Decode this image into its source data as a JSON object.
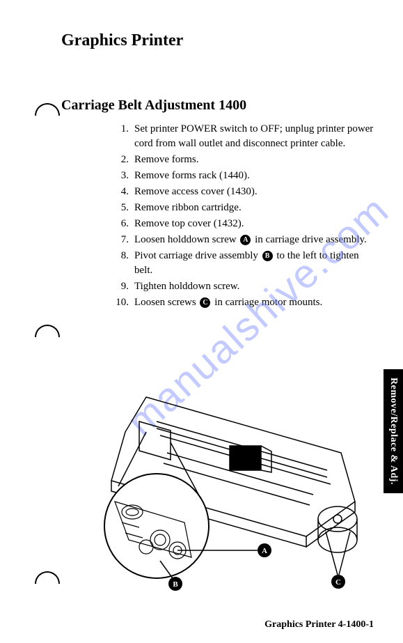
{
  "title": "Graphics Printer",
  "section_title": "Carriage Belt Adjustment  1400",
  "steps": [
    "Set printer POWER switch to OFF; unplug printer power cord from wall outlet and disconnect printer cable.",
    "Remove forms.",
    "Remove forms rack (1440).",
    "Remove access cover (1430).",
    "Remove ribbon cartridge.",
    "Remove top cover (1432).",
    "Loosen holddown screw |A| in carriage drive assembly.",
    "Pivot carriage drive assembly |B| to the left to tighten belt.",
    "Tighten holddown screw.",
    "Loosen screws |C| in carriage motor mounts."
  ],
  "watermark_text": "manualshive.com",
  "side_tab_text": "Remove/Replace & Adj.",
  "footer_text": "Graphics Printer  4-1400-1",
  "diagram_labels": {
    "a": "A",
    "b": "B",
    "c": "C"
  },
  "colors": {
    "watermark": "#7a8cff",
    "text": "#000000",
    "background": "#ffffff"
  }
}
